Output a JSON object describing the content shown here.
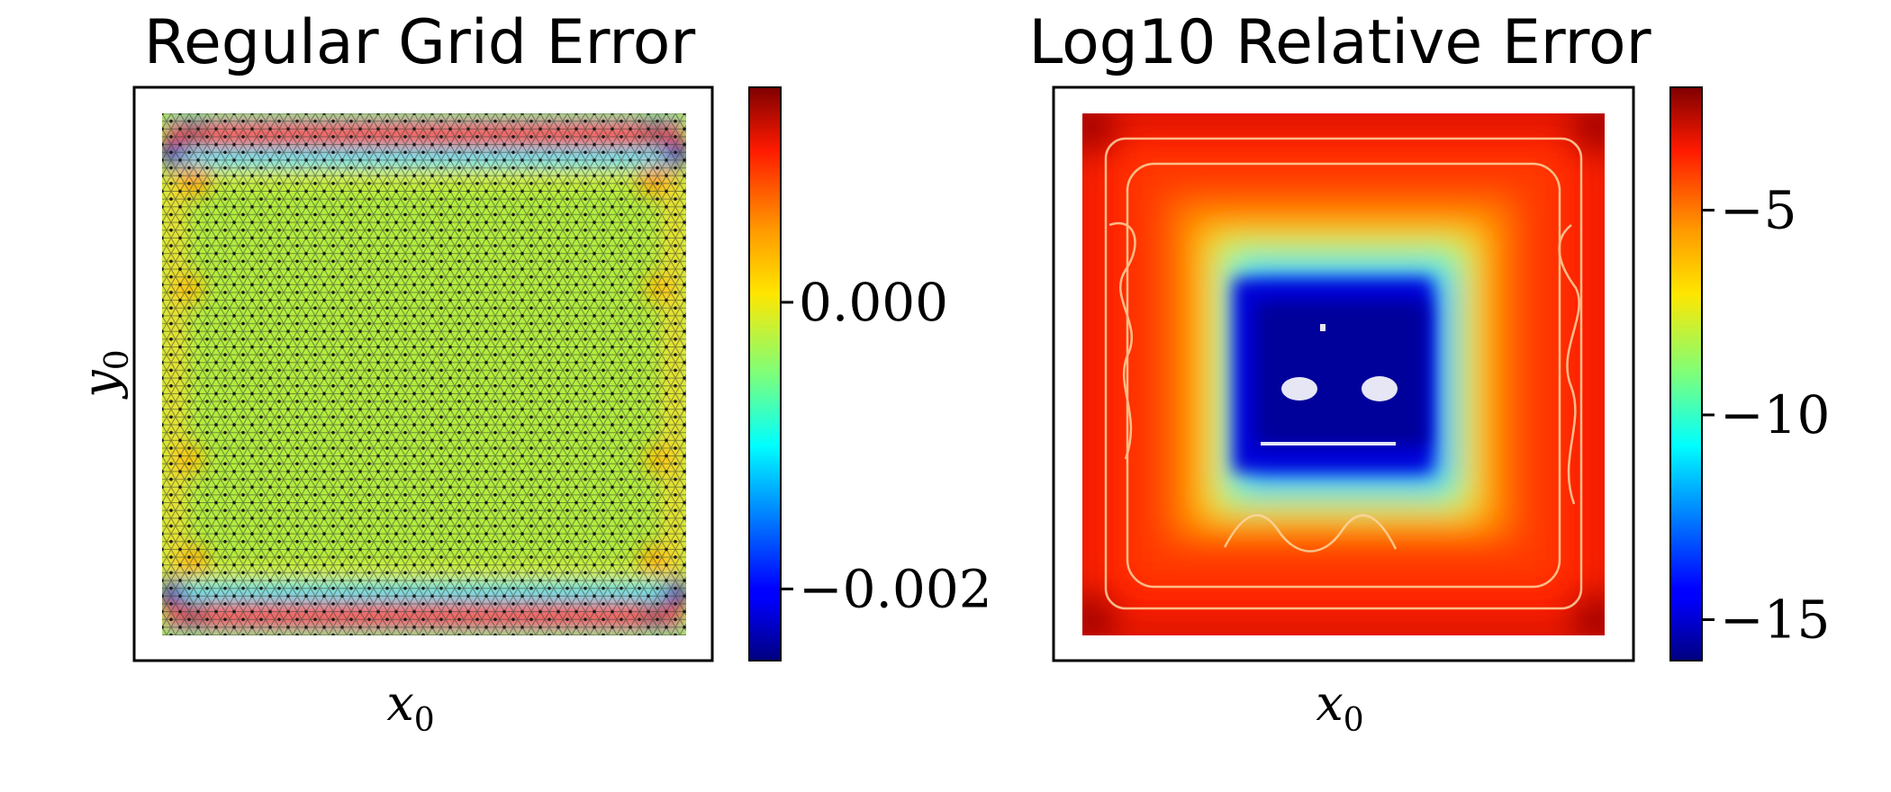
{
  "chart_data": [
    {
      "type": "heatmap",
      "title": "Regular Grid Error",
      "xlabel": "x",
      "xlabel_subscript": "0",
      "ylabel": "y",
      "ylabel_subscript": "0",
      "colormap": "jet",
      "grid_overlay": "triangular mesh of nodes",
      "colorbar": {
        "range": [
          -0.0025,
          0.0015
        ],
        "ticks": [
          {
            "value": -0.002,
            "label": "−0.002"
          },
          {
            "value": 0.0,
            "label": "0.000"
          }
        ]
      },
      "description": "Near-zero error in the interior; strongly positive (red) bands along the top and bottom edges, negative (blue) spots at the left/right ends of those bands, mild positive blotches along the side edges."
    },
    {
      "type": "heatmap",
      "title": "Log10 Relative Error",
      "xlabel": "x",
      "xlabel_subscript": "0",
      "colormap": "jet",
      "colorbar": {
        "range": [
          -16,
          -2
        ],
        "ticks": [
          {
            "value": -5,
            "label": "−5"
          },
          {
            "value": -10,
            "label": "−10"
          },
          {
            "value": -15,
            "label": "−15"
          }
        ]
      },
      "description": "Values near -3 to -4 (red) around the outer region, decreasing through yellow and cyan to about -16 (dark blue) in a central square."
    }
  ]
}
